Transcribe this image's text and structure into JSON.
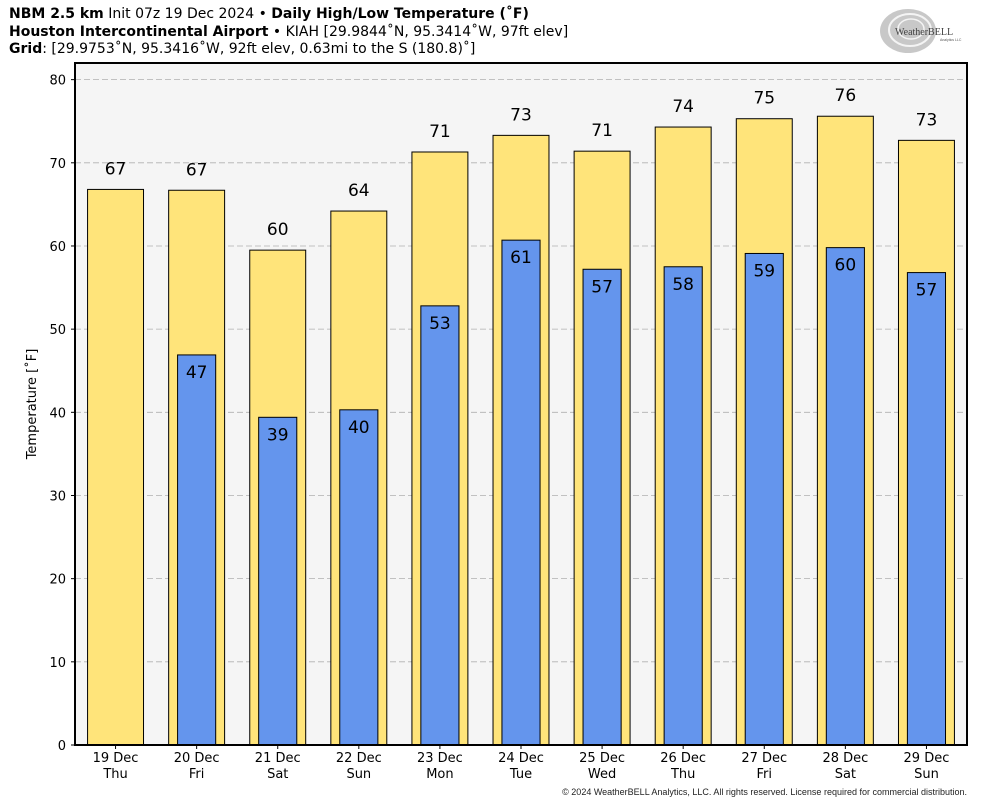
{
  "header": {
    "line1": {
      "model": "NBM 2.5 km",
      "init": "Init 07z 19 Dec 2024",
      "bullet": "•",
      "title": "Daily High/Low Temperature (˚F)"
    },
    "line2": {
      "station": "Houston Intercontinental Airport",
      "bullet": "•",
      "details": "KIAH [29.9844˚N, 95.3414˚W, 97ft elev]"
    },
    "line3": {
      "label": "Grid",
      "details": ": [29.9753˚N, 95.3416˚W, 92ft elev, 0.63mi to the S (180.8)˚]"
    }
  },
  "logo": {
    "text": "WeatherBELL",
    "sub": "Analytics LLC"
  },
  "copyright": "© 2024 WeatherBELL Analytics, LLC. All rights reserved. License required for commercial distribution.",
  "colors": {
    "high": "#FFE47A",
    "low": "#6495ED",
    "plot_bg": "#F5F5F5",
    "grid": "#B0B0B0"
  },
  "chart_data": {
    "type": "bar",
    "ylabel": "Temperature [˚F]",
    "ylim": [
      0,
      82
    ],
    "yticks": [
      0,
      10,
      20,
      30,
      40,
      50,
      60,
      70,
      80
    ],
    "grid": true,
    "categories": [
      {
        "date": "19 Dec",
        "day": "Thu"
      },
      {
        "date": "20 Dec",
        "day": "Fri"
      },
      {
        "date": "21 Dec",
        "day": "Sat"
      },
      {
        "date": "22 Dec",
        "day": "Sun"
      },
      {
        "date": "23 Dec",
        "day": "Mon"
      },
      {
        "date": "24 Dec",
        "day": "Tue"
      },
      {
        "date": "25 Dec",
        "day": "Wed"
      },
      {
        "date": "26 Dec",
        "day": "Thu"
      },
      {
        "date": "27 Dec",
        "day": "Fri"
      },
      {
        "date": "28 Dec",
        "day": "Sat"
      },
      {
        "date": "29 Dec",
        "day": "Sun"
      }
    ],
    "series": [
      {
        "values": [
          66.8,
          66.7,
          59.5,
          64.2,
          71.3,
          73.3,
          71.4,
          74.3,
          75.3,
          75.6,
          72.7
        ],
        "labels": [
          "67",
          "67",
          "60",
          "64",
          "71",
          "73",
          "71",
          "74",
          "75",
          "76",
          "73"
        ]
      },
      {
        "values": [
          null,
          46.9,
          39.4,
          40.3,
          52.8,
          60.7,
          57.2,
          57.5,
          59.1,
          59.8,
          56.8
        ],
        "labels": [
          "",
          "47",
          "39",
          "40",
          "53",
          "61",
          "57",
          "58",
          "59",
          "60",
          "57"
        ]
      }
    ]
  }
}
